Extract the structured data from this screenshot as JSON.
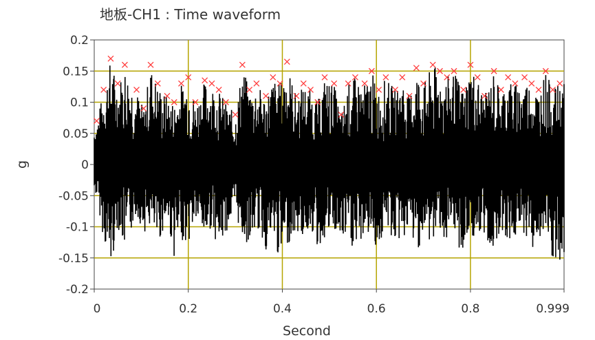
{
  "chart_data": {
    "type": "line",
    "title": "地板-CH1 : Time waveform",
    "xlabel": "Second",
    "ylabel": "g",
    "xlim": [
      0,
      0.999
    ],
    "ylim": [
      -0.2,
      0.2
    ],
    "xticks": [
      "0",
      "0.2",
      "0.4",
      "0.6",
      "0.8",
      "0.999"
    ],
    "yticks": [
      "0.2",
      "0.15",
      "0.1",
      "0.05",
      "0",
      "-0.05",
      "-0.1",
      "-0.15",
      "-0.2"
    ],
    "grid": true,
    "colors": {
      "waveform": "#000000",
      "peak_marker": "#ff3b3b",
      "grid": "#b5a400",
      "plot_bg": "#ffffff"
    },
    "series": [
      {
        "peaks_x": [
          0.005,
          0.02,
          0.035,
          0.05,
          0.065,
          0.09,
          0.105,
          0.12,
          0.135,
          0.155,
          0.17,
          0.185,
          0.2,
          0.215,
          0.235,
          0.25,
          0.265,
          0.28,
          0.3,
          0.315,
          0.33,
          0.345,
          0.365,
          0.38,
          0.395,
          0.41,
          0.43,
          0.445,
          0.46,
          0.475,
          0.49,
          0.51,
          0.525,
          0.54,
          0.555,
          0.575,
          0.59,
          0.605,
          0.62,
          0.64,
          0.655,
          0.67,
          0.685,
          0.7,
          0.72,
          0.735,
          0.75,
          0.765,
          0.785,
          0.8,
          0.815,
          0.83,
          0.85,
          0.865,
          0.88,
          0.895,
          0.915,
          0.93,
          0.945,
          0.96,
          0.975,
          0.99
        ],
        "peaks_y": [
          0.07,
          0.12,
          0.17,
          0.13,
          0.16,
          0.12,
          0.09,
          0.16,
          0.13,
          0.11,
          0.1,
          0.13,
          0.14,
          0.1,
          0.135,
          0.13,
          0.12,
          0.1,
          0.08,
          0.16,
          0.12,
          0.13,
          0.11,
          0.14,
          0.13,
          0.165,
          0.11,
          0.13,
          0.12,
          0.1,
          0.14,
          0.13,
          0.08,
          0.13,
          0.14,
          0.13,
          0.15,
          0.12,
          0.14,
          0.12,
          0.14,
          0.11,
          0.155,
          0.13,
          0.16,
          0.15,
          0.14,
          0.15,
          0.12,
          0.16,
          0.14,
          0.11,
          0.15,
          0.12,
          0.14,
          0.13,
          0.14,
          0.13,
          0.12,
          0.15,
          0.12,
          0.13
        ],
        "troughs_y": [
          -0.05,
          -0.12,
          -0.17,
          -0.1,
          -0.14,
          -0.08,
          -0.11,
          -0.1,
          -0.13,
          -0.09,
          -0.15,
          -0.12,
          -0.13,
          -0.09,
          -0.12,
          -0.1,
          -0.14,
          -0.11,
          -0.08,
          -0.12,
          -0.13,
          -0.1,
          -0.14,
          -0.12,
          -0.16,
          -0.13,
          -0.11,
          -0.12,
          -0.1,
          -0.14,
          -0.12,
          -0.11,
          -0.13,
          -0.12,
          -0.15,
          -0.11,
          -0.12,
          -0.14,
          -0.1,
          -0.13,
          -0.12,
          -0.11,
          -0.14,
          -0.12,
          -0.13,
          -0.1,
          -0.14,
          -0.12,
          -0.15,
          -0.11,
          -0.13,
          -0.12,
          -0.14,
          -0.1,
          -0.13,
          -0.12,
          -0.11,
          -0.14,
          -0.12,
          -0.13,
          -0.16,
          -0.18
        ]
      }
    ]
  }
}
